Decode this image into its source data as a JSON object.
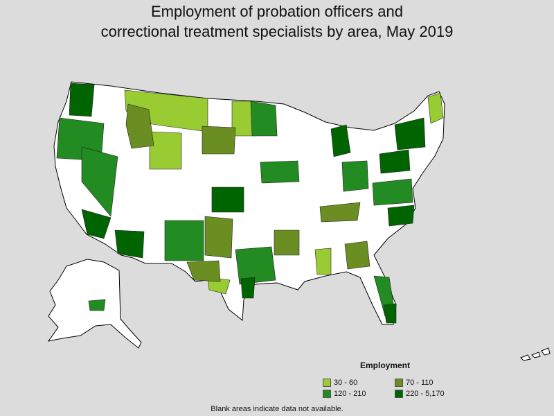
{
  "title_line1": "Employment of probation officers and",
  "title_line2": "correctional treatment specialists by area, May 2019",
  "legend": {
    "title": "Employment",
    "items": [
      {
        "label": "30 - 60",
        "color": "#99cc33"
      },
      {
        "label": "70 - 110",
        "color": "#6b8e23"
      },
      {
        "label": "120 - 210",
        "color": "#228b22"
      },
      {
        "label": "220 - 5,170",
        "color": "#006400"
      }
    ]
  },
  "note": "Blank areas indicate data not available.",
  "colors": {
    "background": "#dcdcdc",
    "no_data": "#ffffff",
    "border": "#000000"
  }
}
